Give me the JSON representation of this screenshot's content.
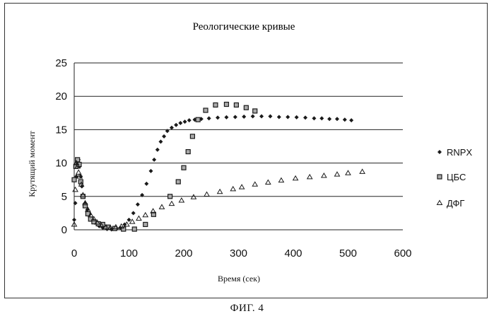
{
  "caption": "ФИГ. 4",
  "chart_data": {
    "type": "scatter",
    "title": "Реологические кривые",
    "xlabel": "Время (сек)",
    "ylabel": "Крутящий момент",
    "xlim": [
      0,
      600
    ],
    "ylim": [
      0,
      25
    ],
    "xticks": [
      "0",
      "100",
      "200",
      "300",
      "400",
      "500",
      "600"
    ],
    "yticks": [
      "0",
      "5",
      "10",
      "15",
      "20",
      "25"
    ],
    "grid": "horizontal",
    "legend_position": "right",
    "series": [
      {
        "name": "RNPX",
        "marker": "diamond",
        "color": "#1a1a1a",
        "x": [
          0,
          2,
          4,
          6,
          8,
          10,
          12,
          14,
          17,
          20,
          24,
          28,
          33,
          38,
          45,
          52,
          60,
          68,
          76,
          84,
          92,
          100,
          108,
          116,
          124,
          132,
          140,
          146,
          152,
          158,
          164,
          170,
          178,
          186,
          194,
          202,
          210,
          220,
          232,
          246,
          262,
          278,
          294,
          310,
          326,
          342,
          358,
          374,
          390,
          406,
          422,
          438,
          452,
          466,
          480,
          494,
          506
        ],
        "y": [
          1.5,
          4,
          8,
          10,
          10.5,
          9.5,
          8,
          6.5,
          5,
          4,
          3,
          2.3,
          1.6,
          1.1,
          0.6,
          0.3,
          0.1,
          0.05,
          0.1,
          0.3,
          0.8,
          1.5,
          2.5,
          3.8,
          5.2,
          6.9,
          8.8,
          10.5,
          12,
          13.2,
          14,
          14.8,
          15.3,
          15.7,
          16,
          16.2,
          16.4,
          16.5,
          16.6,
          16.7,
          16.8,
          16.85,
          16.9,
          16.95,
          17,
          17,
          17,
          16.9,
          16.9,
          16.85,
          16.8,
          16.7,
          16.7,
          16.6,
          16.6,
          16.5,
          16.4
        ]
      },
      {
        "name": "ЦБС",
        "marker": "square",
        "color": "#1a1a1a",
        "x": [
          0,
          3,
          6,
          9,
          12,
          16,
          20,
          25,
          30,
          36,
          44,
          52,
          62,
          74,
          90,
          110,
          130,
          145,
          175,
          190,
          200,
          208,
          216,
          226,
          240,
          258,
          278,
          296,
          314,
          330
        ],
        "y": [
          7.5,
          9.5,
          10.5,
          9.8,
          7.2,
          5,
          3.6,
          2.4,
          1.6,
          1.2,
          0.9,
          0.8,
          0.4,
          0.2,
          0.1,
          0.1,
          0.8,
          2.3,
          5,
          7.2,
          9.3,
          11.7,
          14,
          16.5,
          17.9,
          18.7,
          18.8,
          18.7,
          18.3,
          17.8
        ]
      },
      {
        "name": "ДФГ",
        "marker": "triangle",
        "color": "#1a1a1a",
        "x": [
          0,
          2,
          4,
          6,
          8,
          10,
          13,
          16,
          20,
          25,
          30,
          36,
          42,
          50,
          58,
          66,
          76,
          86,
          96,
          106,
          118,
          130,
          144,
          160,
          178,
          196,
          218,
          242,
          266,
          290,
          306,
          330,
          354,
          378,
          404,
          430,
          456,
          480,
          500,
          526
        ],
        "y": [
          0.8,
          6,
          10,
          9.5,
          8.6,
          8,
          6.8,
          5.2,
          4,
          3,
          2.2,
          1.6,
          1.1,
          0.6,
          0.4,
          0.3,
          0.4,
          0.5,
          0.8,
          1.2,
          1.7,
          2.2,
          2.8,
          3.4,
          3.9,
          4.4,
          4.9,
          5.3,
          5.7,
          6.1,
          6.4,
          6.8,
          7.1,
          7.4,
          7.7,
          7.9,
          8.1,
          8.3,
          8.5,
          8.7
        ]
      }
    ]
  }
}
